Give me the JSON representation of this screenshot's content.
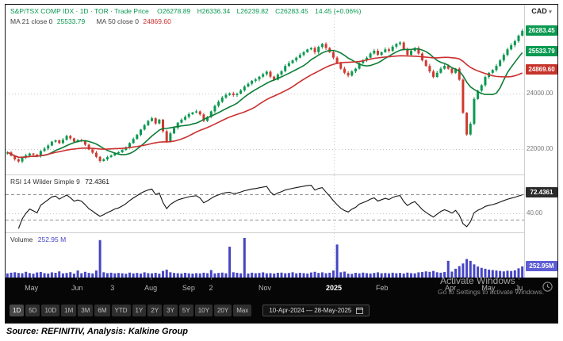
{
  "colors": {
    "up": "#0a9950",
    "down": "#cf3a30",
    "ma21": "#0c7d36",
    "ma50": "#cc2f2f",
    "volume": "#4545c4",
    "rsi_line": "#141414",
    "badge_green": "#0a9950",
    "badge_red": "#c5342b",
    "badge_dark": "#2b2b2b",
    "badge_blue": "#5d5dd5"
  },
  "header": {
    "title": "S&P/TSX COMP IDX · 1D · TOR · Trade Price",
    "open": "O26278.89",
    "high": "H26336.34",
    "low": "L26239.82",
    "close": "C26283.45",
    "change": "14.45 (+0.06%)",
    "ma21_label": "MA 21 close 0",
    "ma21_value": "25533.79",
    "ma50_label": "MA 50 close 0",
    "ma50_value": "24869.60"
  },
  "price_axis": {
    "currency": "CAD",
    "badges": [
      {
        "text": "26283.45",
        "value": 26283.45,
        "color": "#0a9950"
      },
      {
        "text": "25533.79",
        "value": 25533.79,
        "color": "#0a9950"
      },
      {
        "text": "24869.60",
        "value": 24869.6,
        "color": "#c5342b"
      }
    ],
    "gridline_labels": [
      {
        "label": "24000.00",
        "value": 24000
      },
      {
        "label": "22000.00",
        "value": 22000
      }
    ]
  },
  "rsi_panel": {
    "label": "RSI 14 Wilder Simple 9",
    "value": "72.4361",
    "badge": "72.4361",
    "gridline_label": "40.00",
    "gridline_value": 40
  },
  "volume_panel": {
    "label": "Volume",
    "value": "252.95 M",
    "badge": "252.95M",
    "badge_value_m": 252.95
  },
  "x_axis": {
    "labels": [
      {
        "text": "May",
        "pos": 0.05
      },
      {
        "text": "Jun",
        "pos": 0.138
      },
      {
        "text": "3",
        "pos": 0.206
      },
      {
        "text": "Aug",
        "pos": 0.28
      },
      {
        "text": "Sep",
        "pos": 0.353
      },
      {
        "text": "2",
        "pos": 0.396
      },
      {
        "text": "Nov",
        "pos": 0.5
      },
      {
        "text": "2025",
        "pos": 0.633,
        "bold": true
      },
      {
        "text": "Feb",
        "pos": 0.726
      },
      {
        "text": "Apr",
        "pos": 0.858
      },
      {
        "text": "May",
        "pos": 0.931
      },
      {
        "text": "Ju",
        "pos": 0.99
      }
    ]
  },
  "toolbar": {
    "periods": [
      "1D",
      "5D",
      "10D",
      "1M",
      "3M",
      "6M",
      "YTD",
      "1Y",
      "2Y",
      "3Y",
      "5Y",
      "10Y",
      "20Y",
      "Max"
    ],
    "active_period": "1D",
    "date_range": "10-Apr-2024 — 28-May-2025"
  },
  "watermark": {
    "line1": "Activate Windows",
    "line2": "Go to Settings to activate Windows."
  },
  "footer": {
    "source": "Source: REFINITIV, Analysis: Kalkine Group"
  },
  "chart_data": {
    "type": "candlestick",
    "title": "S&P/TSX COMP IDX 1D TOR Trade Price",
    "x_range": [
      "10-Apr-2024",
      "28-May-2025"
    ],
    "ylim": [
      21300,
      27000
    ],
    "y_gridlines": [
      24000,
      22000
    ],
    "year_divider_pos": 0.633,
    "last_bar": {
      "open": 26278.89,
      "high": 26336.34,
      "low": 26239.82,
      "close": 26283.45,
      "change": 14.45,
      "change_pct": 0.06
    },
    "ma": [
      {
        "period": 21,
        "draw_window": 10,
        "last": 25533.79
      },
      {
        "period": 50,
        "draw_window": 25,
        "last": 24869.6
      }
    ],
    "rsi": {
      "period": 14,
      "last": 72.4361,
      "range": [
        15,
        95
      ],
      "dashed_levels": [
        70,
        30
      ],
      "gridline": 40
    },
    "volume": {
      "last_m": 252.95,
      "scale_max_m": 900
    },
    "closes": [
      21870,
      21750,
      21620,
      21540,
      21690,
      21760,
      21830,
      21790,
      21740,
      21920,
      22010,
      22120,
      22260,
      22310,
      22210,
      22330,
      22470,
      22380,
      22260,
      22320,
      22280,
      22150,
      21980,
      21860,
      21710,
      21560,
      21620,
      21700,
      21760,
      21840,
      21880,
      21960,
      22060,
      22210,
      22360,
      22510,
      22700,
      22860,
      23010,
      23110,
      22920,
      23060,
      22640,
      22260,
      22560,
      22760,
      22950,
      23060,
      23160,
      23260,
      23320,
      23360,
      23250,
      23010,
      23160,
      23360,
      23560,
      23710,
      23860,
      23960,
      24010,
      23950,
      24000,
      24120,
      24260,
      24360,
      24470,
      24520,
      24620,
      24710,
      24800,
      24620,
      24510,
      24700,
      24820,
      25010,
      25110,
      25210,
      25310,
      25410,
      25510,
      25610,
      25660,
      25510,
      25700,
      25810,
      25660,
      25510,
      25310,
      25110,
      24910,
      24760,
      24660,
      24810,
      24910,
      25110,
      25210,
      25310,
      25460,
      25560,
      25410,
      25510,
      25610,
      25560,
      25710,
      25810,
      25860,
      25610,
      25410,
      25560,
      25660,
      25460,
      25210,
      25010,
      24810,
      24610,
      24760,
      24910,
      25010,
      24910,
      24760,
      24910,
      24510,
      23310,
      22520,
      22910,
      23810,
      24110,
      24310,
      24610,
      24760,
      24860,
      25010,
      25210,
      25410,
      25610,
      25760,
      25910,
      26110,
      26283.45
    ],
    "volumes_m": [
      95,
      110,
      120,
      105,
      98,
      130,
      102,
      88,
      115,
      125,
      100,
      92,
      118,
      108,
      140,
      96,
      105,
      122,
      90,
      160,
      99,
      130,
      105,
      95,
      160,
      850,
      120,
      100,
      110,
      96,
      104,
      98,
      88,
      112,
      95,
      105,
      92,
      118,
      100,
      96,
      108,
      90,
      150,
      180,
      120,
      105,
      98,
      92,
      108,
      96,
      90,
      100,
      95,
      110,
      100,
      170,
      95,
      105,
      112,
      98,
      700,
      120,
      108,
      96,
      900,
      92,
      110,
      98,
      105,
      118,
      96,
      100,
      92,
      108,
      112,
      98,
      105,
      120,
      96,
      108,
      100,
      92,
      115,
      130,
      105,
      118,
      98,
      110,
      160,
      750,
      120,
      135,
      90,
      85,
      108,
      96,
      112,
      100,
      92,
      105,
      118,
      98,
      104,
      96,
      110,
      98,
      105,
      92,
      112,
      100,
      96,
      118,
      125,
      140,
      130,
      150,
      120,
      110,
      125,
      380,
      135,
      200,
      260,
      320,
      420,
      380,
      300,
      250,
      220,
      200,
      180,
      170,
      160,
      150,
      140,
      155,
      148,
      165,
      210,
      252.95
    ]
  }
}
